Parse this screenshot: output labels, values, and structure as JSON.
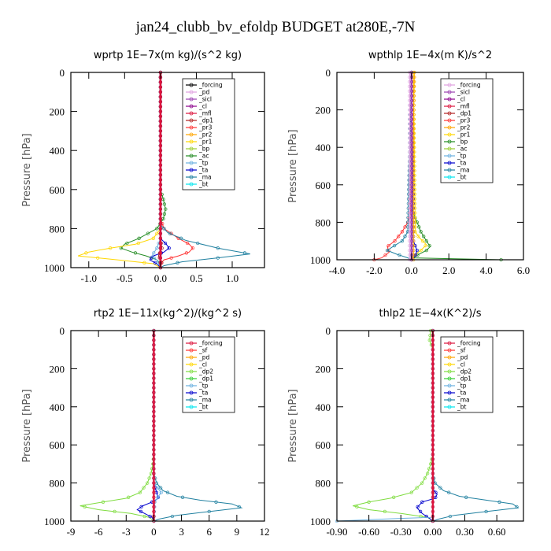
{
  "title": "jan24_clubb_bv_efoldp  BUDGET at280E,-7N",
  "chart_data": [
    {
      "type": "line",
      "title": "wprtp   1E−7x(m kg)/(s^2 kg)",
      "ylabel": "Pressure [hPa]",
      "xlim": [
        -1.25,
        1.45
      ],
      "ylim": [
        1000,
        0
      ],
      "xticks": [
        -1.0,
        -0.5,
        0.0,
        0.5,
        1.0
      ],
      "xtick_labels": [
        "-1.0",
        "-0.5",
        "0.0",
        "0.5",
        "1.0"
      ],
      "yticks": [
        0,
        200,
        400,
        600,
        800,
        1000
      ],
      "ytick_labels": [
        "0",
        "200",
        "400",
        "600",
        "800",
        "1000"
      ],
      "legend": [
        "_forcing",
        "_pd",
        "_sicl",
        "_cl",
        "_mfl",
        "_dp1",
        "_pr3",
        "_pr2",
        "_pr1",
        "_bp",
        "_ac",
        "_tp",
        "_ta",
        "_ma",
        "_bt"
      ],
      "legend_colors": [
        "#000000",
        "#e0a0e0",
        "#9b3fb0",
        "#8b008b",
        "#dc143c",
        "#b22222",
        "#ff3333",
        "#ffa500",
        "#ffd700",
        "#9acd32",
        "#228b22",
        "#6ab0e0",
        "#0000cd",
        "#2080a0",
        "#00e5ee"
      ],
      "series": [
        {
          "color": "#228b22",
          "p": [
            0,
            600,
            650,
            700,
            750,
            800,
            850,
            880,
            900,
            920,
            940,
            960,
            980,
            1000
          ],
          "x": [
            0,
            0.0,
            0.04,
            0.07,
            0.04,
            -0.05,
            -0.3,
            -0.5,
            -0.55,
            -0.4,
            -0.2,
            -0.05,
            0,
            0
          ]
        },
        {
          "color": "#ffd700",
          "p": [
            0,
            800,
            850,
            880,
            900,
            920,
            940,
            960,
            980,
            1000
          ],
          "x": [
            0,
            0,
            -0.1,
            -0.35,
            -0.7,
            -1.0,
            -1.15,
            -0.6,
            -0.1,
            0
          ]
        },
        {
          "color": "#ff3333",
          "p": [
            0,
            750,
            800,
            850,
            880,
            900,
            920,
            940,
            960,
            980,
            1000
          ],
          "x": [
            0,
            0,
            0.05,
            0.25,
            0.4,
            0.45,
            0.4,
            0.25,
            0.05,
            0,
            0
          ]
        },
        {
          "color": "#2080a0",
          "p": [
            0,
            780,
            820,
            860,
            900,
            930,
            950,
            970,
            990,
            1000
          ],
          "x": [
            0,
            0,
            0.1,
            0.35,
            0.8,
            1.25,
            0.8,
            0.3,
            0.05,
            0
          ]
        },
        {
          "color": "#0000cd",
          "p": [
            0,
            850,
            880,
            900,
            920,
            940,
            960,
            980,
            1000
          ],
          "x": [
            0,
            0,
            0.08,
            0.12,
            0.05,
            -0.1,
            -0.15,
            -0.05,
            0
          ]
        },
        {
          "color": "#6ab0e0",
          "p": [
            0,
            850,
            900,
            940,
            960,
            1000
          ],
          "x": [
            0,
            0,
            -0.05,
            -0.12,
            -0.05,
            0
          ]
        },
        {
          "color": "#b22222",
          "p": [
            0,
            850,
            900,
            940,
            970,
            1000
          ],
          "x": [
            0,
            0,
            0.02,
            -0.03,
            0.02,
            0
          ]
        },
        {
          "color": "#000000",
          "p": [
            0,
            1000
          ],
          "x": [
            0,
            0
          ]
        },
        {
          "color": "#9b3fb0",
          "p": [
            0,
            1000
          ],
          "x": [
            0,
            0
          ]
        },
        {
          "color": "#dc143c",
          "p": [
            0,
            1000
          ],
          "x": [
            0,
            0
          ]
        }
      ]
    },
    {
      "type": "line",
      "title": "wpthlp   1E−4x(m K)/s^2",
      "ylabel": "Pressure [hPa]",
      "xlim": [
        -4.0,
        6.0
      ],
      "ylim": [
        1000,
        0
      ],
      "xticks": [
        -4.0,
        -2.0,
        0.0,
        2.0,
        4.0,
        6.0
      ],
      "xtick_labels": [
        "-4.0",
        "-2.0",
        "0.0",
        "2.0",
        "4.0",
        "6.0"
      ],
      "yticks": [
        0,
        200,
        400,
        600,
        800,
        1000
      ],
      "ytick_labels": [
        "0",
        "200",
        "400",
        "600",
        "800",
        "1000"
      ],
      "legend": [
        "_forcing",
        "_sicl",
        "_cl",
        "_mfl",
        "_dp1",
        "_pr3",
        "_pr2",
        "_pr1",
        "_bp",
        "_ac",
        "_tp",
        "_ta",
        "_ma",
        "_bt"
      ],
      "legend_colors": [
        "#e0a0e0",
        "#9b3fb0",
        "#8b008b",
        "#dc143c",
        "#b22222",
        "#ff3333",
        "#ffa500",
        "#ffd700",
        "#228b22",
        "#9acd32",
        "#6ab0e0",
        "#0000cd",
        "#2080a0",
        "#00e5ee"
      ],
      "series": [
        {
          "color": "#228b22",
          "p": [
            0,
            700,
            750,
            800,
            850,
            900,
            930,
            950,
            970,
            990,
            1000
          ],
          "x": [
            0,
            0,
            0.1,
            0.3,
            0.5,
            0.8,
            1.0,
            0.8,
            0.4,
            0.1,
            4.8
          ]
        },
        {
          "color": "#ffd700",
          "p": [
            0,
            850,
            880,
            900,
            920,
            950,
            980,
            1000
          ],
          "x": [
            0.1,
            0.2,
            0.4,
            0.6,
            0.8,
            0.5,
            0.1,
            0
          ]
        },
        {
          "color": "#ff3333",
          "p": [
            0,
            750,
            800,
            850,
            900,
            930,
            960,
            990,
            1000
          ],
          "x": [
            0,
            -0.05,
            -0.2,
            -0.5,
            -0.9,
            -1.3,
            -1.2,
            -1.6,
            -2.0
          ]
        },
        {
          "color": "#2080a0",
          "p": [
            0,
            850,
            900,
            930,
            950,
            970,
            990,
            1000
          ],
          "x": [
            0,
            -0.2,
            -0.5,
            -1.0,
            -1.3,
            -0.8,
            -0.2,
            0
          ]
        },
        {
          "color": "#0000cd",
          "p": [
            0,
            900,
            950,
            980,
            1000
          ],
          "x": [
            0,
            0.1,
            0.3,
            0.2,
            0
          ]
        },
        {
          "color": "#ffa500",
          "p": [
            0,
            300,
            1000
          ],
          "x": [
            0.15,
            0.1,
            0.1
          ]
        },
        {
          "color": "#9b3fb0",
          "p": [
            0,
            1000
          ],
          "x": [
            0,
            0
          ]
        },
        {
          "color": "#e0a0e0",
          "p": [
            0,
            1000
          ],
          "x": [
            -0.1,
            -0.1
          ]
        }
      ]
    },
    {
      "type": "line",
      "title": "rtp2   1E−11x(kg^2)/(kg^2 s)",
      "ylabel": "Pressure [hPa]",
      "xlim": [
        -9,
        12
      ],
      "ylim": [
        1000,
        0
      ],
      "xticks": [
        -9,
        -6,
        -3,
        0,
        3,
        6,
        9,
        12
      ],
      "xtick_labels": [
        "-9",
        "-6",
        "-3",
        "0",
        "3",
        "6",
        "9",
        "12"
      ],
      "yticks": [
        0,
        200,
        400,
        600,
        800,
        1000
      ],
      "ytick_labels": [
        "0",
        "200",
        "400",
        "600",
        "800",
        "1000"
      ],
      "legend": [
        "_forcing",
        "_sf",
        "_pd",
        "_cl",
        "_dp2",
        "_dp1",
        "_tp",
        "_ta",
        "_ma",
        "_bt"
      ],
      "legend_colors": [
        "#dc143c",
        "#ff3333",
        "#ffa500",
        "#ffd700",
        "#7fdc3f",
        "#32cd32",
        "#6ab0e0",
        "#0000cd",
        "#2080a0",
        "#00e5ee"
      ],
      "series": [
        {
          "color": "#7fdc3f",
          "p": [
            0,
            650,
            700,
            750,
            800,
            850,
            880,
            900,
            920,
            940,
            960,
            980,
            1000
          ],
          "x": [
            0,
            0,
            -0.1,
            -0.3,
            -0.7,
            -1.5,
            -3.0,
            -5.5,
            -8.0,
            -6.0,
            -2.5,
            -0.5,
            0
          ]
        },
        {
          "color": "#2080a0",
          "p": [
            0,
            750,
            800,
            840,
            870,
            890,
            910,
            930,
            950,
            970,
            990,
            1000
          ],
          "x": [
            0,
            0,
            0.3,
            1.0,
            2.5,
            5.0,
            8.5,
            9.5,
            6.0,
            2.5,
            0.5,
            0
          ]
        },
        {
          "color": "#0000cd",
          "p": [
            0,
            800,
            850,
            880,
            900,
            920,
            940,
            960,
            980,
            1000
          ],
          "x": [
            0,
            0,
            0.3,
            0.5,
            -0.2,
            -1.2,
            -1.8,
            -1.0,
            -0.2,
            0
          ]
        },
        {
          "color": "#6ab0e0",
          "p": [
            0,
            800,
            850,
            870,
            900,
            1000
          ],
          "x": [
            0,
            0,
            0.8,
            0.5,
            0.1,
            0
          ]
        },
        {
          "color": "#dc143c",
          "p": [
            0,
            1000
          ],
          "x": [
            0,
            0
          ]
        }
      ]
    },
    {
      "type": "line",
      "title": "thlp2   1E−4x(K^2)/s",
      "ylabel": "Pressure [hPa]",
      "xlim": [
        -0.9,
        0.85
      ],
      "ylim": [
        1000,
        0
      ],
      "xticks": [
        -0.9,
        -0.6,
        -0.3,
        0.0,
        0.3,
        0.6
      ],
      "xtick_labels": [
        "-0.90",
        "-0.60",
        "-0.30",
        "0.00",
        "0.30",
        "0.60"
      ],
      "yticks": [
        0,
        200,
        400,
        600,
        800,
        1000
      ],
      "ytick_labels": [
        "0",
        "200",
        "400",
        "600",
        "800",
        "1000"
      ],
      "legend": [
        "_forcing",
        "_sf",
        "_pd",
        "_cl",
        "_dp2",
        "_dp1",
        "_tp",
        "_ta",
        "_ma",
        "_bt"
      ],
      "legend_colors": [
        "#dc143c",
        "#ff3333",
        "#ffa500",
        "#ffd700",
        "#7fdc3f",
        "#32cd32",
        "#6ab0e0",
        "#0000cd",
        "#2080a0",
        "#00e5ee"
      ],
      "series": [
        {
          "color": "#7fdc3f",
          "p": [
            0,
            50,
            100,
            650,
            700,
            750,
            800,
            850,
            880,
            900,
            920,
            940,
            960,
            980,
            1000
          ],
          "x": [
            -0.02,
            -0.03,
            0,
            0,
            -0.02,
            -0.05,
            -0.1,
            -0.2,
            -0.4,
            -0.6,
            -0.75,
            -0.6,
            -0.3,
            -0.05,
            0
          ]
        },
        {
          "color": "#2080a0",
          "p": [
            0,
            750,
            800,
            840,
            870,
            890,
            910,
            930,
            950,
            970,
            990,
            1000
          ],
          "x": [
            0,
            0,
            0.02,
            0.1,
            0.25,
            0.5,
            0.75,
            0.8,
            0.5,
            0.2,
            0.05,
            0
          ]
        },
        {
          "color": "#0000cd",
          "p": [
            0,
            830,
            860,
            880,
            900,
            930,
            960,
            990,
            1000
          ],
          "x": [
            0,
            0,
            0.04,
            0.02,
            -0.1,
            -0.15,
            -0.1,
            -0.02,
            0
          ]
        },
        {
          "color": "#6ab0e0",
          "p": [
            0,
            980,
            990,
            1000
          ],
          "x": [
            0,
            0,
            -0.5,
            -0.9
          ]
        },
        {
          "color": "#dc143c",
          "p": [
            0,
            1000
          ],
          "x": [
            0,
            0
          ]
        }
      ]
    }
  ]
}
